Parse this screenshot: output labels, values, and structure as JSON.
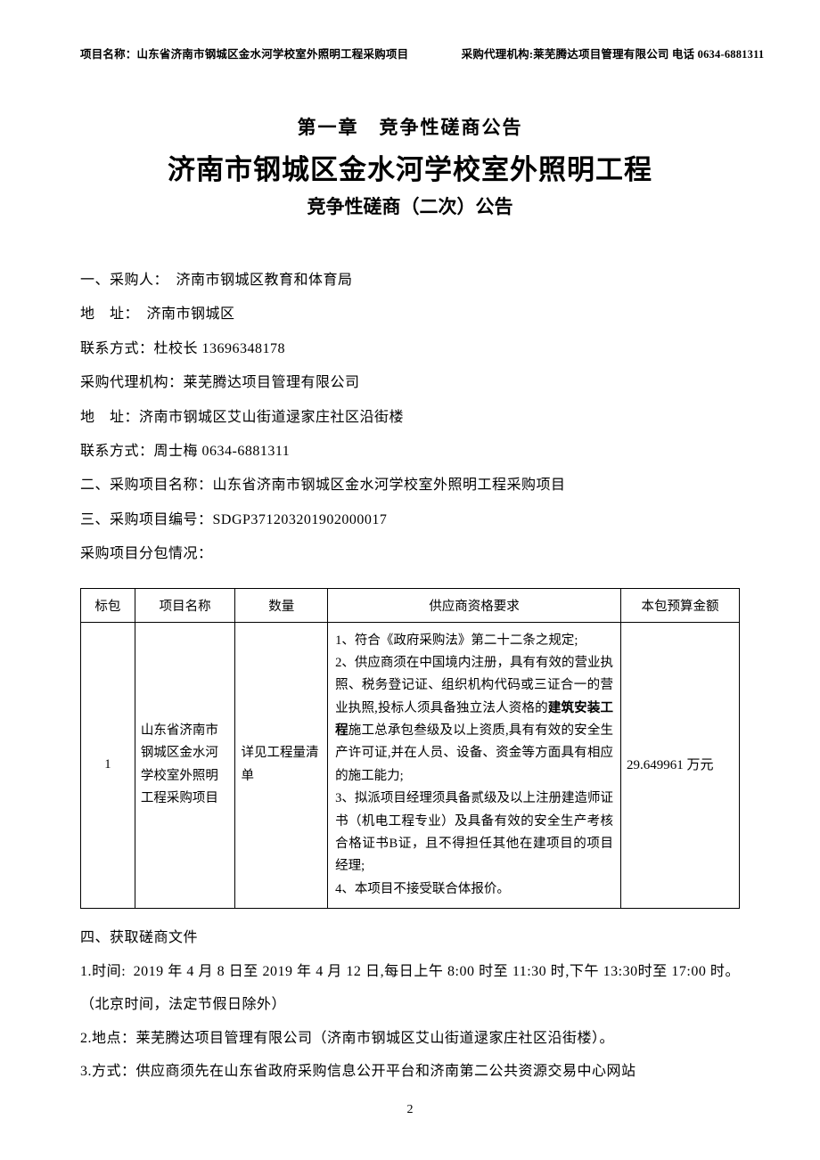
{
  "header": {
    "left": "项目名称：山东省济南市钢城区金水河学校室外照明工程采购项目",
    "right": "采购代理机构:莱芜腾达项目管理有限公司  电话 0634-6881311"
  },
  "chapter": "第一章 竞争性磋商公告",
  "title_main": "济南市钢城区金水河学校室外照明工程",
  "subtitle": "竞争性磋商（二次）公告",
  "lines": {
    "l1": "一、采购人： 济南市钢城区教育和体育局",
    "l2": "地 址： 济南市钢城区",
    "l3": "联系方式：杜校长 13696348178",
    "l4": "采购代理机构：莱芜腾达项目管理有限公司",
    "l5": "地 址：济南市钢城区艾山街道逯家庄社区沿街楼",
    "l6": "联系方式：周士梅 0634-6881311",
    "l7": "二、采购项目名称：山东省济南市钢城区金水河学校室外照明工程采购项目",
    "l8": "三、采购项目编号：SDGP371203201902000017",
    "l9": "采购项目分包情况："
  },
  "table": {
    "headers": {
      "pkg": "标包",
      "name": "项目名称",
      "qty": "数量",
      "req": "供应商资格要求",
      "budget": "本包预算金额"
    },
    "row": {
      "pkg": "1",
      "name": "山东省济南市钢城区金水河学校室外照明工程采购项目",
      "qty": "详见工程量清单",
      "req_p1": "1、符合《政府采购法》第二十二条之规定;",
      "req_p2a": "2、供应商须在中国境内注册，具有有效的营业执照、税务登记证、组织机构代码或三证合一的营业执照,投标人须具备独立法人资格的",
      "req_p2_bold": "建筑安装工程",
      "req_p2b": "施工总承包叁级及以上资质,具有有效的安全生产许可证,并在人员、设备、资金等方面具有相应的施工能力;",
      "req_p3": "3、拟派项目经理须具备贰级及以上注册建造师证书（机电工程专业）及具备有效的安全生产考核合格证书B证，且不得担任其他在建项目的项目经理;",
      "req_p4": "4、本项目不接受联合体报价。",
      "budget": "29.649961 万元"
    }
  },
  "after": {
    "a1": "四、获取磋商文件",
    "a2": "1.时间: 2019 年 4 月 8 日至 2019 年 4 月 12 日,每日上午 8:00 时至 11:30 时,下午 13:30时至 17:00 时。（北京时间，法定节假日除外）",
    "a3": "2.地点：莱芜腾达项目管理有限公司（济南市钢城区艾山街道逯家庄社区沿街楼）。",
    "a4": "3.方式：供应商须先在山东省政府采购信息公开平台和济南第二公共资源交易中心网站"
  },
  "page_number": "2"
}
